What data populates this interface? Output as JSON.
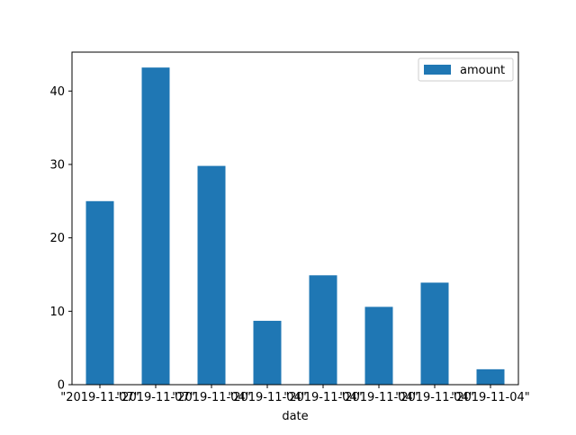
{
  "chart_data": {
    "type": "bar",
    "categories": [
      "\"2019-11-07\"",
      "\"2019-11-07\"",
      "\"2019-11-04\"",
      "\"2019-11-04\"",
      "\"2019-11-04\"",
      "\"2019-11-04\"",
      "\"2019-11-04\"",
      "\"2019-11-04\""
    ],
    "series": [
      {
        "name": "amount",
        "values": [
          25,
          43.2,
          29.8,
          8.7,
          14.9,
          10.6,
          13.9,
          2.1
        ]
      }
    ],
    "xlabel": "date",
    "ylabel": "",
    "ylim": [
      0,
      45.3
    ],
    "yticks": [
      0,
      10,
      20,
      30,
      40
    ],
    "grid": false,
    "legend_position": "top-right",
    "colors": {
      "bar": "#1f77b4",
      "axis": "#000000",
      "background": "#ffffff"
    }
  }
}
